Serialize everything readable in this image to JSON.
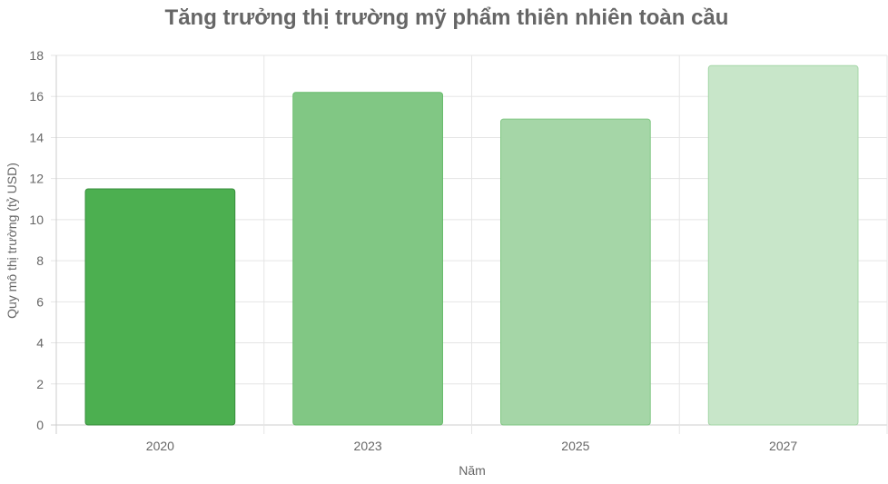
{
  "chart_data": {
    "type": "bar",
    "title": "Tăng trưởng thị trường mỹ phẩm thiên nhiên toàn cầu",
    "xlabel": "Năm",
    "ylabel": "Quy mô thị trường (tỷ USD)",
    "categories": [
      "2020",
      "2023",
      "2025",
      "2027"
    ],
    "values": [
      11.5,
      16.2,
      14.9,
      17.5
    ],
    "ylim": [
      0,
      18
    ],
    "yticks": [
      0,
      2,
      4,
      6,
      8,
      10,
      12,
      14,
      16,
      18
    ],
    "grid": true,
    "legend": "none",
    "bar_colors": [
      "#4caf50",
      "#81c784",
      "#a5d6a7",
      "#c8e6c9"
    ],
    "bar_border_colors": [
      "#388e3c",
      "#66bb6a",
      "#81c784",
      "#a5d6a7"
    ]
  }
}
